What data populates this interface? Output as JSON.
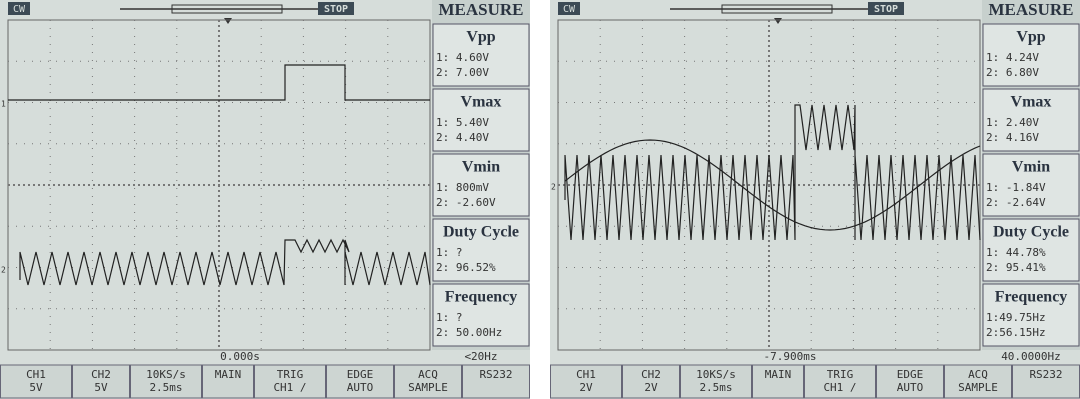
{
  "screens": [
    {
      "mode": "CW",
      "state": "STOP",
      "measure_title": "MEASURE",
      "measures": [
        {
          "name": "Vpp",
          "ch1": "1: 4.60V",
          "ch2": "2: 7.00V"
        },
        {
          "name": "Vmax",
          "ch1": "1: 5.40V",
          "ch2": "2: 4.40V"
        },
        {
          "name": "Vmin",
          "ch1": "1: 800mV",
          "ch2": "2: -2.60V"
        },
        {
          "name": "Duty Cycle",
          "ch1": "1: ?",
          "ch2": "2: 96.52%"
        },
        {
          "name": "Frequency",
          "ch1": "1: ?",
          "ch2": "2: 50.00Hz"
        }
      ],
      "markers": [
        "1",
        "2"
      ],
      "time": "0.000s",
      "trigger_freq": "<20Hz",
      "status": [
        [
          "CH1",
          "5V"
        ],
        [
          "CH2",
          "5V"
        ],
        [
          "10KS/s",
          "2.5ms"
        ],
        [
          "MAIN"
        ],
        [
          "TRIG",
          "CH1 /"
        ],
        [
          "EDGE",
          "AUTO"
        ],
        [
          "ACQ",
          "SAMPLE"
        ],
        [
          "RS232"
        ]
      ]
    },
    {
      "mode": "CW",
      "state": "STOP",
      "measure_title": "MEASURE",
      "measures": [
        {
          "name": "Vpp",
          "ch1": "1: 4.24V",
          "ch2": "2: 6.80V"
        },
        {
          "name": "Vmax",
          "ch1": "1: 2.40V",
          "ch2": "2: 4.16V"
        },
        {
          "name": "Vmin",
          "ch1": "1: -1.84V",
          "ch2": "2: -2.64V"
        },
        {
          "name": "Duty Cycle",
          "ch1": "1: 44.78%",
          "ch2": "2: 95.41%"
        },
        {
          "name": "Frequency",
          "ch1": "1:49.75Hz",
          "ch2": "2:56.15Hz"
        }
      ],
      "markers": [
        "2"
      ],
      "time": "-7.900ms",
      "trigger_freq": "40.0000Hz",
      "status": [
        [
          "CH1",
          "2V"
        ],
        [
          "CH2",
          "2V"
        ],
        [
          "10KS/s",
          "2.5ms"
        ],
        [
          "MAIN"
        ],
        [
          "TRIG",
          "CH1 /"
        ],
        [
          "EDGE",
          "AUTO"
        ],
        [
          "ACQ",
          "SAMPLE"
        ],
        [
          "RS232"
        ]
      ]
    }
  ]
}
